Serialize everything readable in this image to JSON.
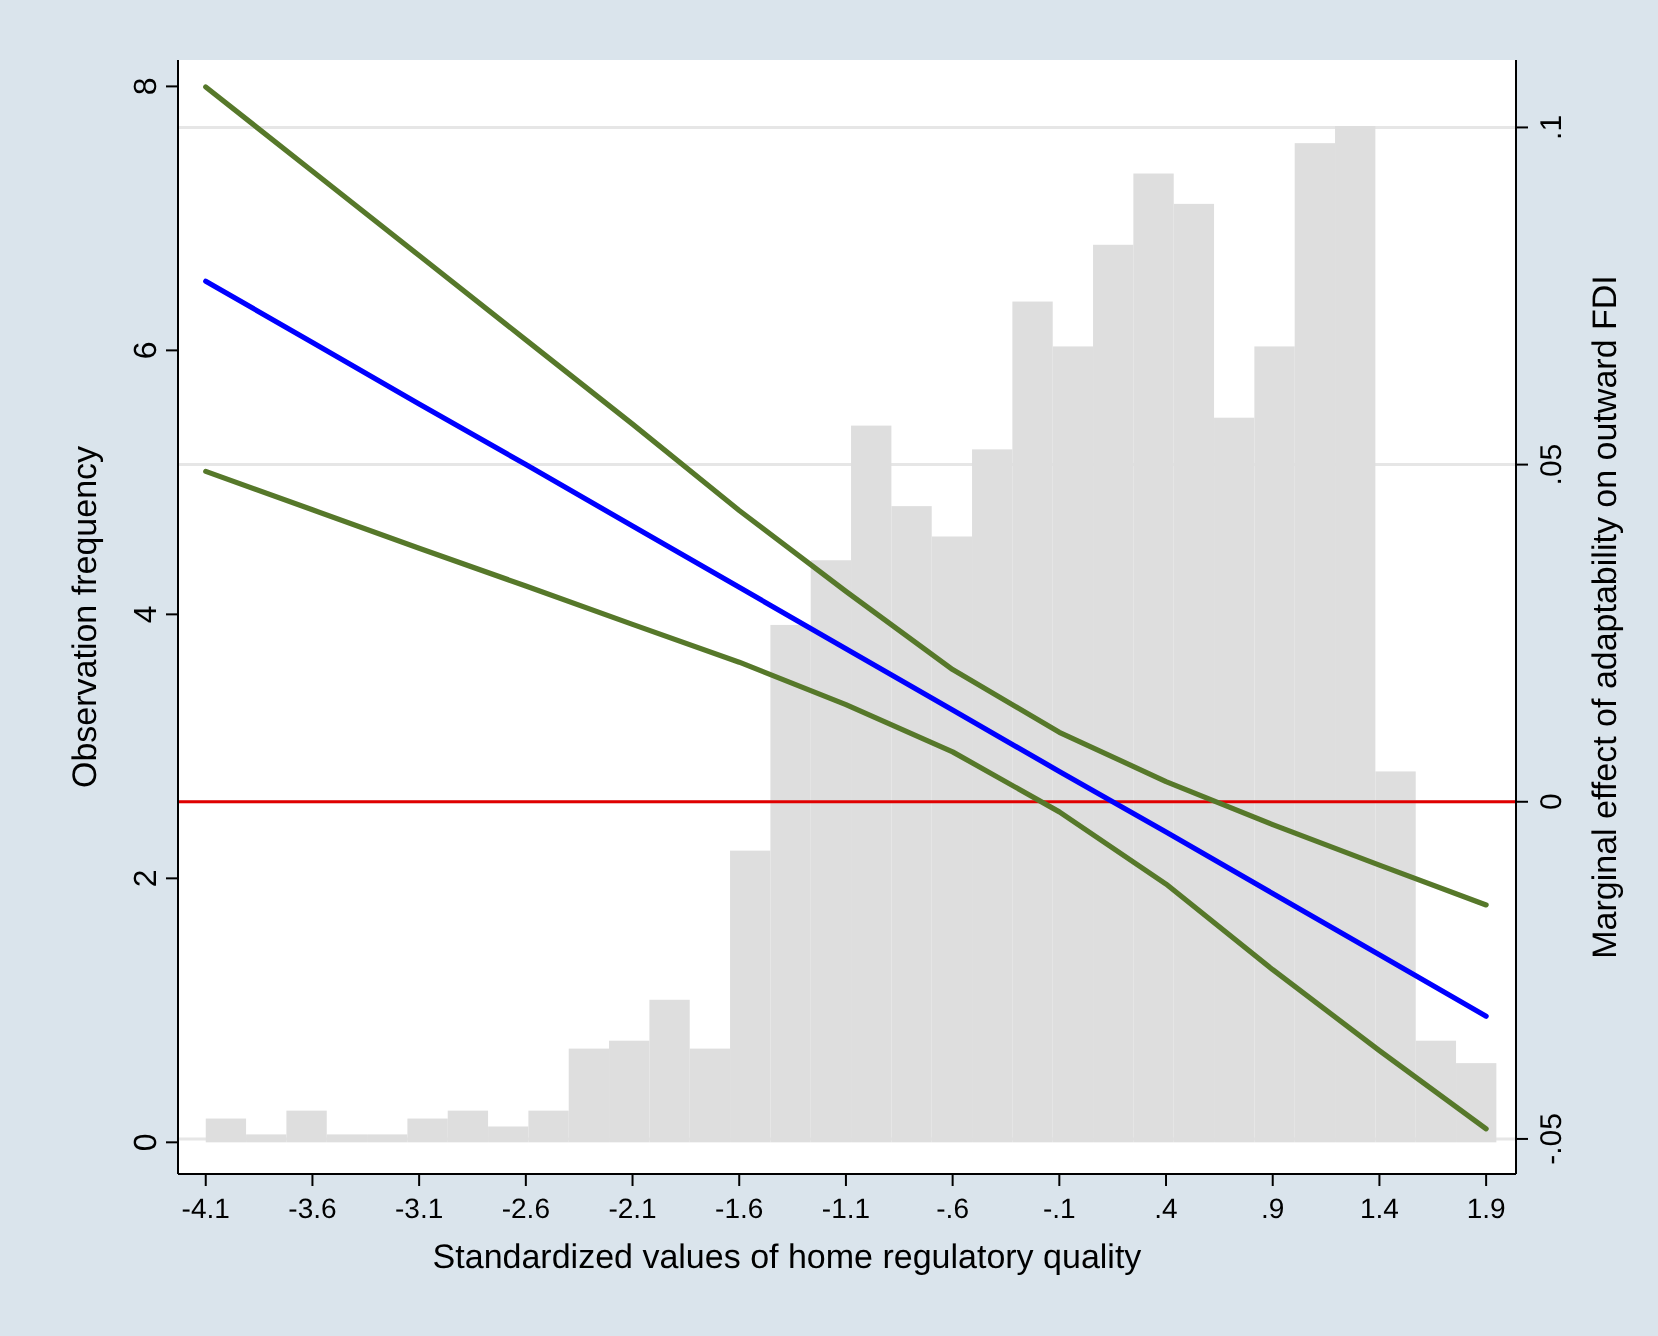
{
  "chart_data": {
    "type": "histogram",
    "xlabel": "Standardized values of home regulatory quality",
    "ylabel": "Observation frequency",
    "y2label": "Marginal effect of adaptability on outward FDI",
    "bins": [
      -4.1,
      -3.911,
      -3.722,
      -3.533,
      -3.344,
      -3.155,
      -2.966,
      -2.777,
      -2.588,
      -2.399,
      -2.21,
      -2.021,
      -1.832,
      -1.643,
      -1.454,
      -1.265,
      -1.076,
      -0.887,
      -0.698,
      -0.509,
      -0.32,
      -0.131,
      0.058,
      0.247,
      0.436,
      0.625,
      0.814,
      1.003,
      1.192,
      1.381,
      1.57,
      1.759,
      1.948
    ],
    "values": [
      0.18,
      0.06,
      0.24,
      0.06,
      0.06,
      0.18,
      0.24,
      0.12,
      0.24,
      0.71,
      0.77,
      1.08,
      0.71,
      2.21,
      3.92,
      4.41,
      5.43,
      4.82,
      4.59,
      5.25,
      6.37,
      6.03,
      6.8,
      7.34,
      7.11,
      5.49,
      6.03,
      7.57,
      7.7,
      2.81,
      0.77,
      0.6
    ],
    "color": "#dedede",
    "series": [
      {
        "type": "line",
        "axis": "y2",
        "color": "#56782a",
        "x": [
          -4.1,
          -3.6,
          -3.1,
          -2.6,
          -2.1,
          -1.6,
          -1.1,
          -0.6,
          -0.1,
          0.4,
          0.9,
          1.4,
          1.9
        ],
        "values": [
          0.106,
          0.0935,
          0.081,
          0.0685,
          0.056,
          0.0432,
          0.0312,
          0.0196,
          0.0103,
          0.003,
          -0.0034,
          -0.0094,
          -0.0153
        ]
      },
      {
        "type": "line",
        "axis": "y2",
        "color": "#0000ff",
        "x": [
          -4.1,
          -3.6,
          -3.1,
          -2.6,
          -2.1,
          -1.6,
          -1.1,
          -0.6,
          -0.1,
          0.4,
          0.9,
          1.4,
          1.9
        ],
        "values": [
          0.0772,
          0.0681,
          0.059,
          0.05,
          0.0409,
          0.0318,
          0.0227,
          0.0136,
          0.0045,
          -0.0045,
          -0.0136,
          -0.0227,
          -0.0318
        ]
      },
      {
        "type": "line",
        "axis": "y2",
        "color": "#56782a",
        "x": [
          -4.1,
          -3.6,
          -3.1,
          -2.6,
          -2.1,
          -1.6,
          -1.1,
          -0.6,
          -0.1,
          0.4,
          0.9,
          1.4,
          1.9
        ],
        "values": [
          0.049,
          0.0433,
          0.0376,
          0.032,
          0.0263,
          0.0207,
          0.0144,
          0.0074,
          -0.0015,
          -0.0122,
          -0.0249,
          -0.0369,
          -0.0485
        ]
      }
    ],
    "xlim": [
      -4.23,
      2.04
    ],
    "xticks": [
      -4.1,
      -3.6,
      -3.1,
      -2.6,
      -2.1,
      -1.6,
      -1.1,
      {
        "value": -0.6,
        "label": "-.6"
      },
      {
        "value": -0.1,
        "label": "-.1"
      },
      {
        "value": 0.4,
        "label": ".4"
      },
      {
        "value": 0.9,
        "label": ".9"
      },
      1.4,
      1.9
    ],
    "ylim": [
      -0.24,
      8.2
    ],
    "yticks": [
      0,
      2,
      4,
      6,
      8
    ],
    "y2lim": [
      -0.0552,
      0.11
    ],
    "y2ticks": [
      {
        "value": -0.05,
        "label": "-.05"
      },
      0,
      {
        "value": 0.05,
        "label": ".05"
      },
      {
        "value": 0.1,
        "label": ".1"
      }
    ],
    "ref_lines": [
      {
        "axis": "y2",
        "value": 0,
        "color": "#e00000"
      }
    ],
    "grid": "y2"
  }
}
